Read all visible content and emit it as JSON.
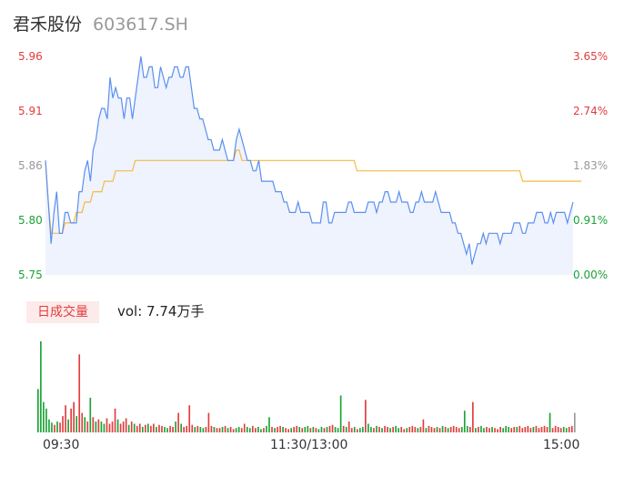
{
  "stock": {
    "name": "君禾股份",
    "code": "603617.SH"
  },
  "volume_label": {
    "badge": "日成交量",
    "text": "vol: 7.74万手"
  },
  "colors": {
    "price": "#5b8ff0",
    "avg": "#f5b94a",
    "up": "#e23c3c",
    "down": "#1aa336",
    "neutral": "#999999",
    "area": "#eef3fd"
  },
  "chart_data": [
    {
      "type": "line",
      "title": "",
      "y_left_ticks": [
        "5.96",
        "5.91",
        "5.86",
        "5.80",
        "5.75"
      ],
      "y_right_ticks": [
        "3.65%",
        "2.74%",
        "1.83%",
        "0.91%",
        "0.00%"
      ],
      "ylim": [
        5.75,
        5.96
      ],
      "x_ticks": [
        "09:30",
        "11:30/13:00",
        "15:00"
      ],
      "series": [],
      "price_values": [
        5.86,
        5.82,
        5.78,
        5.81,
        5.83,
        5.79,
        5.79,
        5.81,
        5.81,
        5.8,
        5.8,
        5.8,
        5.83,
        5.83,
        5.85,
        5.86,
        5.84,
        5.87,
        5.88,
        5.9,
        5.91,
        5.91,
        5.9,
        5.94,
        5.92,
        5.93,
        5.92,
        5.92,
        5.9,
        5.92,
        5.92,
        5.9,
        5.92,
        5.94,
        5.96,
        5.94,
        5.94,
        5.95,
        5.95,
        5.93,
        5.93,
        5.95,
        5.94,
        5.93,
        5.94,
        5.94,
        5.95,
        5.95,
        5.94,
        5.94,
        5.95,
        5.95,
        5.93,
        5.91,
        5.91,
        5.9,
        5.9,
        5.89,
        5.88,
        5.88,
        5.87,
        5.87,
        5.87,
        5.88,
        5.87,
        5.86,
        5.86,
        5.86,
        5.88,
        5.89,
        5.88,
        5.87,
        5.86,
        5.86,
        5.85,
        5.85,
        5.86,
        5.84,
        5.84,
        5.84,
        5.84,
        5.84,
        5.83,
        5.83,
        5.83,
        5.82,
        5.82,
        5.81,
        5.81,
        5.81,
        5.82,
        5.81,
        5.81,
        5.81,
        5.81,
        5.8,
        5.8,
        5.8,
        5.8,
        5.82,
        5.82,
        5.8,
        5.8,
        5.81,
        5.81,
        5.81,
        5.81,
        5.81,
        5.82,
        5.82,
        5.81,
        5.81,
        5.81,
        5.81,
        5.81,
        5.82,
        5.82,
        5.82,
        5.81,
        5.82,
        5.82,
        5.83,
        5.83,
        5.82,
        5.82,
        5.82,
        5.83,
        5.82,
        5.82,
        5.82,
        5.81,
        5.81,
        5.82,
        5.82,
        5.83,
        5.82,
        5.82,
        5.82,
        5.82,
        5.83,
        5.82,
        5.81,
        5.81,
        5.81,
        5.81,
        5.8,
        5.8,
        5.79,
        5.79,
        5.78,
        5.77,
        5.78,
        5.76,
        5.77,
        5.78,
        5.78,
        5.79,
        5.78,
        5.79,
        5.79,
        5.79,
        5.79,
        5.78,
        5.79,
        5.79,
        5.79,
        5.79,
        5.8,
        5.8,
        5.8,
        5.79,
        5.79,
        5.8,
        5.8,
        5.8,
        5.81,
        5.81,
        5.81,
        5.8,
        5.8,
        5.81,
        5.8,
        5.81,
        5.81,
        5.81,
        5.81,
        5.8,
        5.81,
        5.82
      ],
      "avg_values": [
        5.86,
        5.82,
        5.79,
        5.79,
        5.79,
        5.79,
        5.79,
        5.8,
        5.8,
        5.8,
        5.8,
        5.81,
        5.81,
        5.81,
        5.82,
        5.82,
        5.82,
        5.83,
        5.83,
        5.83,
        5.83,
        5.84,
        5.84,
        5.84,
        5.84,
        5.85,
        5.85,
        5.85,
        5.85,
        5.85,
        5.85,
        5.85,
        5.86,
        5.86,
        5.86,
        5.86,
        5.86,
        5.86,
        5.86,
        5.86,
        5.86,
        5.86,
        5.86,
        5.86,
        5.86,
        5.86,
        5.86,
        5.86,
        5.86,
        5.86,
        5.86,
        5.86,
        5.86,
        5.86,
        5.86,
        5.86,
        5.86,
        5.86,
        5.86,
        5.86,
        5.86,
        5.86,
        5.86,
        5.86,
        5.86,
        5.86,
        5.86,
        5.86,
        5.87,
        5.87,
        5.86,
        5.86,
        5.86,
        5.86,
        5.86,
        5.86,
        5.86,
        5.86,
        5.86,
        5.86,
        5.86,
        5.86,
        5.86,
        5.86,
        5.86,
        5.86,
        5.86,
        5.86,
        5.86,
        5.86,
        5.86,
        5.86,
        5.86,
        5.86,
        5.86,
        5.86,
        5.86,
        5.86,
        5.86,
        5.86,
        5.86,
        5.86,
        5.86,
        5.86,
        5.86,
        5.86,
        5.86,
        5.86,
        5.86,
        5.86,
        5.86,
        5.85,
        5.85,
        5.85,
        5.85,
        5.85,
        5.85,
        5.85,
        5.85,
        5.85,
        5.85,
        5.85,
        5.85,
        5.85,
        5.85,
        5.85,
        5.85,
        5.85,
        5.85,
        5.85,
        5.85,
        5.85,
        5.85,
        5.85,
        5.85,
        5.85,
        5.85,
        5.85,
        5.85,
        5.85,
        5.85,
        5.85,
        5.85,
        5.85,
        5.85,
        5.85,
        5.85,
        5.85,
        5.85,
        5.85,
        5.85,
        5.85,
        5.85,
        5.85,
        5.85,
        5.85,
        5.85,
        5.85,
        5.85,
        5.85,
        5.85,
        5.85,
        5.85,
        5.85,
        5.85,
        5.85,
        5.85,
        5.85,
        5.85,
        5.85,
        5.84,
        5.84,
        5.84,
        5.84,
        5.84,
        5.84,
        5.84,
        5.84,
        5.84,
        5.84,
        5.84,
        5.84,
        5.84,
        5.84,
        5.84,
        5.84,
        5.84,
        5.84,
        5.84,
        5.84,
        5.84,
        5.84
      ]
    },
    {
      "type": "bar",
      "title": "",
      "volumes": [
        0.4,
        0.84,
        0.28,
        0.22,
        0.12,
        0.09,
        0.07,
        0.1,
        0.09,
        0.15,
        0.25,
        0.12,
        0.22,
        0.28,
        0.15,
        0.72,
        0.18,
        0.14,
        0.1,
        0.32,
        0.14,
        0.1,
        0.12,
        0.1,
        0.08,
        0.13,
        0.08,
        0.1,
        0.22,
        0.12,
        0.08,
        0.1,
        0.13,
        0.07,
        0.1,
        0.08,
        0.06,
        0.08,
        0.05,
        0.07,
        0.08,
        0.06,
        0.08,
        0.05,
        0.07,
        0.06,
        0.05,
        0.04,
        0.06,
        0.05,
        0.1,
        0.18,
        0.08,
        0.05,
        0.06,
        0.25,
        0.07,
        0.05,
        0.06,
        0.05,
        0.04,
        0.05,
        0.18,
        0.06,
        0.05,
        0.04,
        0.04,
        0.05,
        0.06,
        0.04,
        0.05,
        0.03,
        0.04,
        0.05,
        0.04,
        0.08,
        0.05,
        0.04,
        0.06,
        0.04,
        0.05,
        0.03,
        0.04,
        0.06,
        0.14,
        0.05,
        0.04,
        0.05,
        0.06,
        0.05,
        0.04,
        0.03,
        0.04,
        0.05,
        0.06,
        0.05,
        0.04,
        0.05,
        0.06,
        0.04,
        0.05,
        0.04,
        0.03,
        0.05,
        0.04,
        0.05,
        0.06,
        0.07,
        0.05,
        0.04,
        0.34,
        0.06,
        0.05,
        0.1,
        0.04,
        0.05,
        0.03,
        0.04,
        0.05,
        0.3,
        0.08,
        0.05,
        0.04,
        0.06,
        0.05,
        0.04,
        0.06,
        0.05,
        0.04,
        0.05,
        0.06,
        0.04,
        0.05,
        0.03,
        0.04,
        0.05,
        0.06,
        0.05,
        0.04,
        0.05,
        0.12,
        0.04,
        0.06,
        0.05,
        0.04,
        0.05,
        0.04,
        0.06,
        0.05,
        0.04,
        0.05,
        0.06,
        0.05,
        0.04,
        0.05,
        0.2,
        0.06,
        0.05,
        0.28,
        0.04,
        0.05,
        0.06,
        0.04,
        0.05,
        0.04,
        0.05,
        0.04,
        0.03,
        0.05,
        0.04,
        0.06,
        0.05,
        0.04,
        0.05,
        0.05,
        0.06,
        0.04,
        0.05,
        0.06,
        0.04,
        0.05,
        0.06,
        0.04,
        0.05,
        0.06,
        0.05,
        0.18,
        0.04,
        0.06,
        0.05,
        0.04,
        0.05,
        0.04,
        0.05,
        0.06,
        0.18
      ],
      "directions": [
        "d",
        "d",
        "d",
        "d",
        "d",
        "d",
        "u",
        "d",
        "u",
        "u",
        "u",
        "d",
        "u",
        "u",
        "d",
        "u",
        "u",
        "d",
        "u",
        "d",
        "u",
        "d",
        "u",
        "d",
        "d",
        "u",
        "u",
        "u",
        "u",
        "d",
        "u",
        "u",
        "u",
        "d",
        "u",
        "d",
        "u",
        "u",
        "d",
        "u",
        "d",
        "u",
        "u",
        "d",
        "u",
        "u",
        "d",
        "d",
        "u",
        "u",
        "d",
        "u",
        "d",
        "u",
        "u",
        "u",
        "u",
        "d",
        "u",
        "d",
        "d",
        "u",
        "u",
        "u",
        "d",
        "u",
        "u",
        "d",
        "u",
        "d",
        "u",
        "u",
        "d",
        "d",
        "u",
        "u",
        "d",
        "d",
        "u",
        "u",
        "d",
        "d",
        "u",
        "d",
        "d",
        "u",
        "d",
        "u",
        "u",
        "d",
        "u",
        "u",
        "d",
        "u",
        "u",
        "d",
        "u",
        "d",
        "d",
        "u",
        "d",
        "u",
        "d",
        "d",
        "u",
        "d",
        "u",
        "u",
        "d",
        "d",
        "d",
        "u",
        "d",
        "u",
        "u",
        "d",
        "u",
        "d",
        "d",
        "u",
        "d",
        "d",
        "u",
        "d",
        "u",
        "d",
        "u",
        "u",
        "d",
        "u",
        "d",
        "d",
        "u",
        "u",
        "d",
        "u",
        "u",
        "u",
        "d",
        "u",
        "u",
        "d",
        "u",
        "u",
        "u",
        "d",
        "u",
        "d",
        "u",
        "d",
        "u",
        "u",
        "u",
        "u",
        "d",
        "d",
        "d",
        "u",
        "u",
        "d",
        "u",
        "d",
        "d",
        "u",
        "u",
        "d",
        "u",
        "u",
        "u",
        "d",
        "d",
        "d",
        "u",
        "u",
        "d",
        "u",
        "u",
        "u",
        "u",
        "u",
        "d",
        "u",
        "u",
        "u",
        "u",
        "u",
        "d",
        "u",
        "u",
        "u",
        "u",
        "d",
        "d",
        "u",
        "u",
        "n"
      ]
    }
  ]
}
